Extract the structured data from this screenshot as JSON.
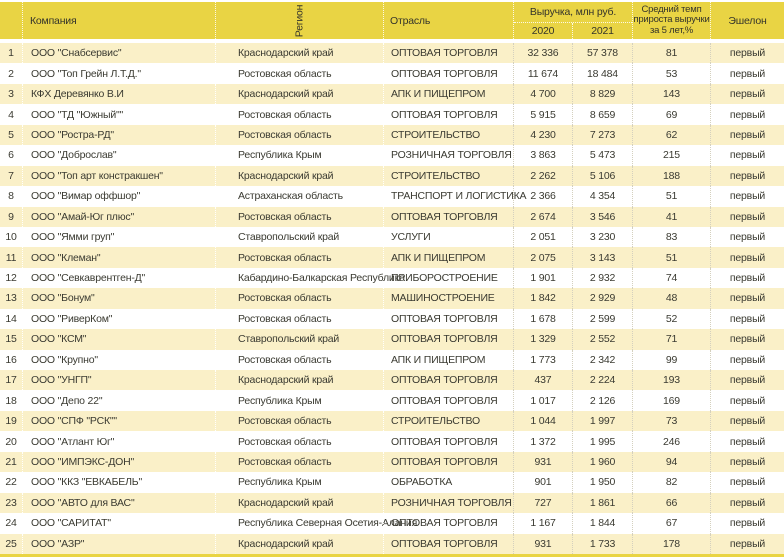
{
  "colors": {
    "header_bg": "#e9d444",
    "row_alt_bg": "#faf0c8",
    "row_bg": "#ffffff",
    "text": "#3a3a31",
    "bottom_border": "#e9d444"
  },
  "header": {
    "company": "Компания",
    "region": "Регион",
    "industry": "Отрасль",
    "revenue": "Выручка, млн руб.",
    "y2020": "2020",
    "y2021": "2021",
    "growth1": "Средний темп",
    "growth2": "прироста выручки",
    "growth3": "за 5 лет,%",
    "echelon": "Эшелон"
  },
  "rows": [
    {
      "n": "1",
      "company": "ООО \"Снабсервис\"",
      "region": "Краснодарский край",
      "industry": "ОПТОВАЯ ТОРГОВЛЯ",
      "y2020": "32 336",
      "y2021": "57 378",
      "growth": "81",
      "echelon": "первый"
    },
    {
      "n": "2",
      "company": "ООО \"Топ Грейн Л.Т.Д.\"",
      "region": "Ростовская область",
      "industry": "ОПТОВАЯ ТОРГОВЛЯ",
      "y2020": "11 674",
      "y2021": "18 484",
      "growth": "53",
      "echelon": "первый"
    },
    {
      "n": "3",
      "company": "КФХ Деревянко В.И",
      "region": "Краснодарский край",
      "industry": "АПК И ПИЩЕПРОМ",
      "y2020": "4 700",
      "y2021": "8 829",
      "growth": "143",
      "echelon": "первый"
    },
    {
      "n": "4",
      "company": "ООО \"ТД \"Южный\"\"",
      "region": "Ростовская область",
      "industry": "ОПТОВАЯ ТОРГОВЛЯ",
      "y2020": "5 915",
      "y2021": "8 659",
      "growth": "69",
      "echelon": "первый"
    },
    {
      "n": "5",
      "company": "ООО \"Ростра-РД\"",
      "region": "Ростовская область",
      "industry": "СТРОИТЕЛЬСТВО",
      "y2020": "4 230",
      "y2021": "7 273",
      "growth": "62",
      "echelon": "первый"
    },
    {
      "n": "6",
      "company": "ООО \"Доброслав\"",
      "region": "Республика Крым",
      "industry": "РОЗНИЧНАЯ ТОРГОВЛЯ",
      "y2020": "3 863",
      "y2021": "5 473",
      "growth": "215",
      "echelon": "первый"
    },
    {
      "n": "7",
      "company": "ООО \"Топ арт констракшен\"",
      "region": "Краснодарский край",
      "industry": "СТРОИТЕЛЬСТВО",
      "y2020": "2 262",
      "y2021": "5 106",
      "growth": "188",
      "echelon": "первый"
    },
    {
      "n": "8",
      "company": "ООО \"Вимар оффшор\"",
      "region": "Астраханская область",
      "industry": "ТРАНСПОРТ И ЛОГИСТИКА",
      "y2020": "2 366",
      "y2021": "4 354",
      "growth": "51",
      "echelon": "первый"
    },
    {
      "n": "9",
      "company": "ООО \"Амай-Юг плюс\"",
      "region": "Ростовская область",
      "industry": "ОПТОВАЯ ТОРГОВЛЯ",
      "y2020": "2 674",
      "y2021": "3 546",
      "growth": "41",
      "echelon": "первый"
    },
    {
      "n": "10",
      "company": "ООО \"Ямми груп\"",
      "region": "Ставропольский край",
      "industry": "УСЛУГИ",
      "y2020": "2 051",
      "y2021": "3 230",
      "growth": "83",
      "echelon": "первый"
    },
    {
      "n": "11",
      "company": "ООО \"Клеман\"",
      "region": "Ростовская область",
      "industry": "АПК И ПИЩЕПРОМ",
      "y2020": "2 075",
      "y2021": "3 143",
      "growth": "51",
      "echelon": "первый"
    },
    {
      "n": "12",
      "company": "ООО \"Севкаврентген-Д\"",
      "region": "Кабардино-Балкарская Республика",
      "industry": "ПРИБОРОСТРОЕНИЕ",
      "y2020": "1 901",
      "y2021": "2 932",
      "growth": "74",
      "echelon": "первый"
    },
    {
      "n": "13",
      "company": "ООО \"Бонум\"",
      "region": "Ростовская область",
      "industry": "МАШИНОСТРОЕНИЕ",
      "y2020": "1 842",
      "y2021": "2 929",
      "growth": "48",
      "echelon": "первый"
    },
    {
      "n": "14",
      "company": "ООО \"РиверКом\"",
      "region": "Ростовская область",
      "industry": "ОПТОВАЯ ТОРГОВЛЯ",
      "y2020": "1 678",
      "y2021": "2 599",
      "growth": "52",
      "echelon": "первый"
    },
    {
      "n": "15",
      "company": "ООО \"КСМ\"",
      "region": "Ставропольский край",
      "industry": "ОПТОВАЯ ТОРГОВЛЯ",
      "y2020": "1 329",
      "y2021": "2 552",
      "growth": "71",
      "echelon": "первый"
    },
    {
      "n": "16",
      "company": "ООО \"Крупно\"",
      "region": "Ростовская область",
      "industry": "АПК И ПИЩЕПРОМ",
      "y2020": "1 773",
      "y2021": "2 342",
      "growth": "99",
      "echelon": "первый"
    },
    {
      "n": "17",
      "company": "ООО \"УНГП\"",
      "region": "Краснодарский край",
      "industry": "ОПТОВАЯ ТОРГОВЛЯ",
      "y2020": "437",
      "y2021": "2 224",
      "growth": "193",
      "echelon": "первый"
    },
    {
      "n": "18",
      "company": "ООО \"Депо 22\"",
      "region": "Республика Крым",
      "industry": "ОПТОВАЯ ТОРГОВЛЯ",
      "y2020": "1 017",
      "y2021": "2 126",
      "growth": "169",
      "echelon": "первый"
    },
    {
      "n": "19",
      "company": "ООО \"СПФ \"РСК\"\"",
      "region": "Ростовская область",
      "industry": "СТРОИТЕЛЬСТВО",
      "y2020": "1 044",
      "y2021": "1 997",
      "growth": "73",
      "echelon": "первый"
    },
    {
      "n": "20",
      "company": "ООО \"Атлант Юг\"",
      "region": "Ростовская область",
      "industry": "ОПТОВАЯ ТОРГОВЛЯ",
      "y2020": "1 372",
      "y2021": "1 995",
      "growth": "246",
      "echelon": "первый"
    },
    {
      "n": "21",
      "company": "ООО \"ИМПЭКС-ДОН\"",
      "region": "Ростовская область",
      "industry": "ОПТОВАЯ ТОРГОВЛЯ",
      "y2020": "931",
      "y2021": "1 960",
      "growth": "94",
      "echelon": "первый"
    },
    {
      "n": "22",
      "company": "ООО \"ККЗ \"ЕВКАБЕЛЬ\"",
      "region": "Республика Крым",
      "industry": "ОБРАБОТКА",
      "y2020": "901",
      "y2021": "1 950",
      "growth": "82",
      "echelon": "первый"
    },
    {
      "n": "23",
      "company": "ООО \"АВТО для ВАС\"",
      "region": "Краснодарский край",
      "industry": "РОЗНИЧНАЯ ТОРГОВЛЯ",
      "y2020": "727",
      "y2021": "1 861",
      "growth": "66",
      "echelon": "первый"
    },
    {
      "n": "24",
      "company": "ООО \"САРИТАТ\"",
      "region": "Республика Северная Осетия-Алания",
      "industry": "ОПТОВАЯ ТОРГОВЛЯ",
      "y2020": "1 167",
      "y2021": "1 844",
      "growth": "67",
      "echelon": "первый"
    },
    {
      "n": "25",
      "company": "ООО \"АЗР\"",
      "region": "Краснодарский край",
      "industry": "ОПТОВАЯ ТОРГОВЛЯ",
      "y2020": "931",
      "y2021": "1 733",
      "growth": "178",
      "echelon": "первый"
    }
  ]
}
